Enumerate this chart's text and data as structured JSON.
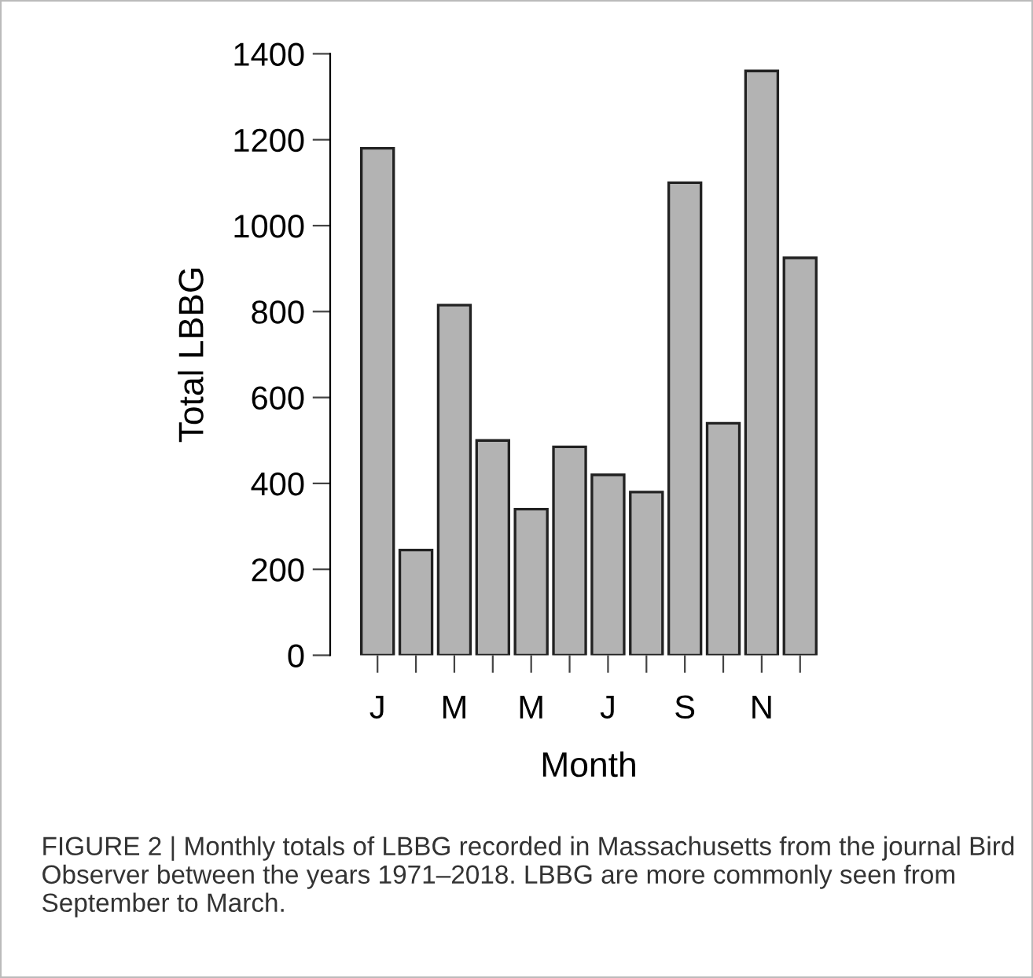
{
  "chart_data": {
    "type": "bar",
    "xlabel": "Month",
    "ylabel": "Total LBBG",
    "categories": [
      "J",
      null,
      "M",
      null,
      "M",
      null,
      "J",
      null,
      "S",
      null,
      "N",
      null
    ],
    "values": [
      1180,
      245,
      815,
      500,
      340,
      485,
      420,
      380,
      1100,
      540,
      1360,
      925
    ],
    "color": "#b3b3b3",
    "ylim": [
      0,
      1400
    ],
    "yticks": [
      0,
      200,
      400,
      600,
      800,
      1000,
      1200,
      1400
    ],
    "grid": false,
    "legend": false,
    "annotations": [
      "FIGURE 2 | Monthly totals of LBBG recorded in Massachusetts from the journal Bird Observer between the years 1971–2018. LBBG are more commonly seen from September to March."
    ]
  }
}
